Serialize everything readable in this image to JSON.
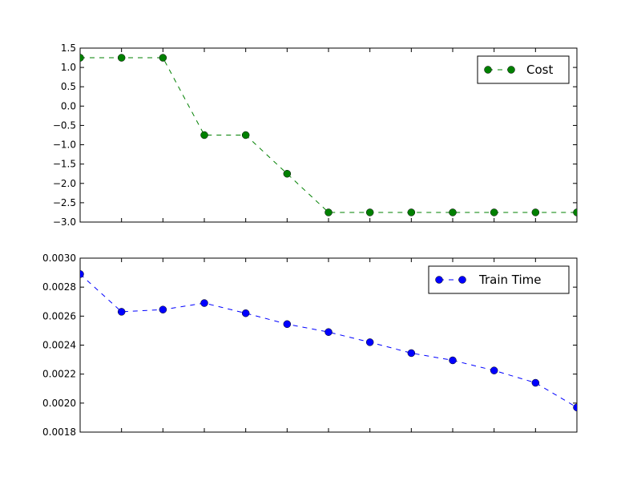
{
  "chart_data": [
    {
      "type": "line",
      "x": [
        0,
        1,
        2,
        3,
        4,
        5,
        6,
        7,
        8,
        9,
        10,
        11,
        12
      ],
      "series": [
        {
          "name": "Cost",
          "values": [
            1.25,
            1.25,
            1.25,
            -0.75,
            -0.75,
            -1.75,
            -2.75,
            -2.75,
            -2.75,
            -2.75,
            -2.75,
            -2.75,
            -2.75
          ],
          "color": "#008000",
          "line_style": "dashed",
          "marker": "circle"
        }
      ],
      "xlim": [
        0,
        12
      ],
      "ylim": [
        -3.0,
        1.5
      ],
      "yticks": [
        -3.0,
        -2.5,
        -2.0,
        -1.5,
        -1.0,
        -0.5,
        0.0,
        0.5,
        1.0,
        1.5
      ],
      "ytick_labels": [
        "−3.0",
        "−2.5",
        "−2.0",
        "−1.5",
        "−1.0",
        "−0.5",
        "0.0",
        "0.5",
        "1.0",
        "1.5"
      ],
      "x_tick_labels_visible": false,
      "grid": false,
      "legend_position": "top-right"
    },
    {
      "type": "line",
      "x": [
        0,
        1,
        2,
        3,
        4,
        5,
        6,
        7,
        8,
        9,
        10,
        11,
        12
      ],
      "series": [
        {
          "name": "Train Time",
          "values": [
            0.00289,
            0.00263,
            0.002645,
            0.00269,
            0.00262,
            0.002545,
            0.00249,
            0.00242,
            0.002345,
            0.002295,
            0.002225,
            0.00214,
            0.00197
          ],
          "color": "#0000ff",
          "line_style": "dashed",
          "marker": "circle"
        }
      ],
      "xlim": [
        0,
        12
      ],
      "ylim": [
        0.0018,
        0.003
      ],
      "yticks": [
        0.0018,
        0.002,
        0.0022,
        0.0024,
        0.0026,
        0.0028,
        0.003
      ],
      "ytick_labels": [
        "0.0018",
        "0.0020",
        "0.0022",
        "0.0024",
        "0.0026",
        "0.0028",
        "0.0030"
      ],
      "x_tick_labels_visible": false,
      "grid": false,
      "legend_position": "top-right"
    }
  ]
}
